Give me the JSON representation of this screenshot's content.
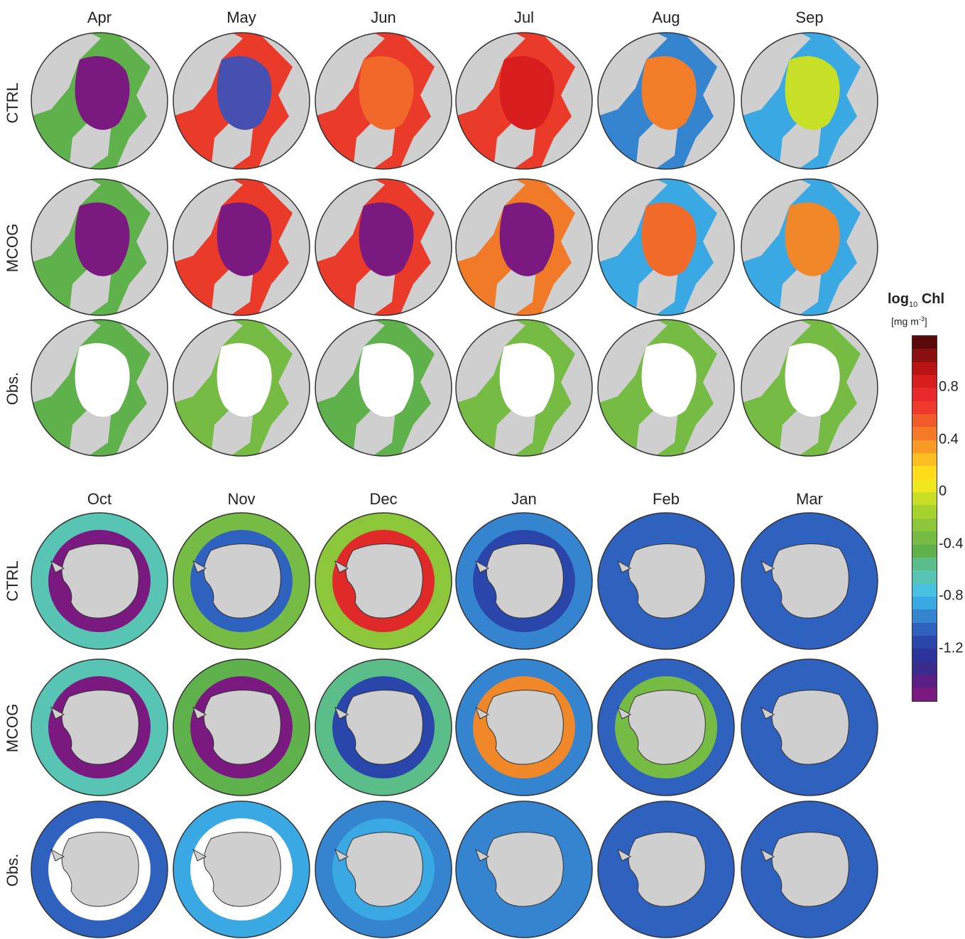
{
  "arctic": {
    "months": [
      "Apr",
      "May",
      "Jun",
      "Jul",
      "Aug",
      "Sep"
    ],
    "rows": [
      "CTRL",
      "MCOG",
      "Obs."
    ]
  },
  "antarctic": {
    "months": [
      "Oct",
      "Nov",
      "Dec",
      "Jan",
      "Feb",
      "Mar"
    ],
    "rows": [
      "CTRL",
      "MCOG",
      "Obs."
    ]
  },
  "colorbar": {
    "title_main": "log",
    "title_sub": "10",
    "title_var": "Chl",
    "unit_pre": "[mg m",
    "unit_sup": "-3",
    "unit_post": "]",
    "ticks": [
      "0.8",
      "0.4",
      "0",
      "-0.4",
      "-0.8",
      "-1.2"
    ],
    "tick_values": [
      0.8,
      0.4,
      0,
      -0.4,
      -0.8,
      -1.2
    ],
    "range": [
      -1.6,
      1.2
    ],
    "colors": [
      "#5a0a0a",
      "#8b1010",
      "#b81414",
      "#d71d1d",
      "#ea2a2a",
      "#f03a2c",
      "#f25a2a",
      "#f47a28",
      "#f79a26",
      "#fbbd22",
      "#fedc1a",
      "#f0e81e",
      "#c9df26",
      "#a6d22c",
      "#8cc63a",
      "#76bc44",
      "#5fb14c",
      "#5bbd88",
      "#58c4b4",
      "#48c0e2",
      "#3aa8e2",
      "#3484d0",
      "#2f62bf",
      "#2a46aa",
      "#2c349a",
      "#3a2c8c",
      "#5a1f84",
      "#7a1a80"
    ]
  },
  "colors": {
    "land": "#cfcfcf",
    "ice_white": "#ffffff",
    "arctic_palette": {
      "CTRL": [
        "#7a1a80",
        "#4550b0",
        "#f2682a",
        "#d71d1d",
        "#f27e2a",
        "#c7df26"
      ],
      "MCOG": [
        "#7a1a80",
        "#7a1a80",
        "#7a1a80",
        "#7a1a80",
        "#f06a2a",
        "#f0882a"
      ],
      "Obs.": [
        "#ffffff",
        "#ffffff",
        "#ffffff",
        "#ffffff",
        "#ffffff",
        "#ffffff"
      ]
    },
    "arctic_ring": {
      "CTRL": [
        "#5fb14c",
        "#ea3a2a",
        "#ea3a2a",
        "#ea3a2a",
        "#3484d0",
        "#3aa8e2"
      ],
      "MCOG": [
        "#5fb14c",
        "#ea3a2a",
        "#ea3a2a",
        "#f07a28",
        "#3aa8e2",
        "#3aa8e2"
      ],
      "Obs.": [
        "#5fb14c",
        "#76bc44",
        "#5fb14c",
        "#76bc44",
        "#76bc44",
        "#76bc44"
      ]
    },
    "antarctic_inner": {
      "CTRL": [
        "#7a1a80",
        "#2f62bf",
        "#e02a2a",
        "#2a46aa",
        "#2f62bf",
        "#2f62bf"
      ],
      "MCOG": [
        "#7a1a80",
        "#7a1a80",
        "#2a46aa",
        "#f0882a",
        "#76bc44",
        "#2f62bf"
      ],
      "Obs.": [
        "#ffffff",
        "#ffffff",
        "#3aa8e2",
        "#3484d0",
        "#2f62bf",
        "#2f62bf"
      ]
    },
    "antarctic_outer": {
      "CTRL": [
        "#58c4b4",
        "#76bc44",
        "#8cc63a",
        "#3484d0",
        "#2f62bf",
        "#2f62bf"
      ],
      "MCOG": [
        "#58c4b4",
        "#5fb14c",
        "#5bbd88",
        "#3484d0",
        "#2f62bf",
        "#2f62bf"
      ],
      "Obs.": [
        "#2f62bf",
        "#3aa8e2",
        "#3484d0",
        "#3484d0",
        "#2f62bf",
        "#2f62bf"
      ]
    }
  }
}
